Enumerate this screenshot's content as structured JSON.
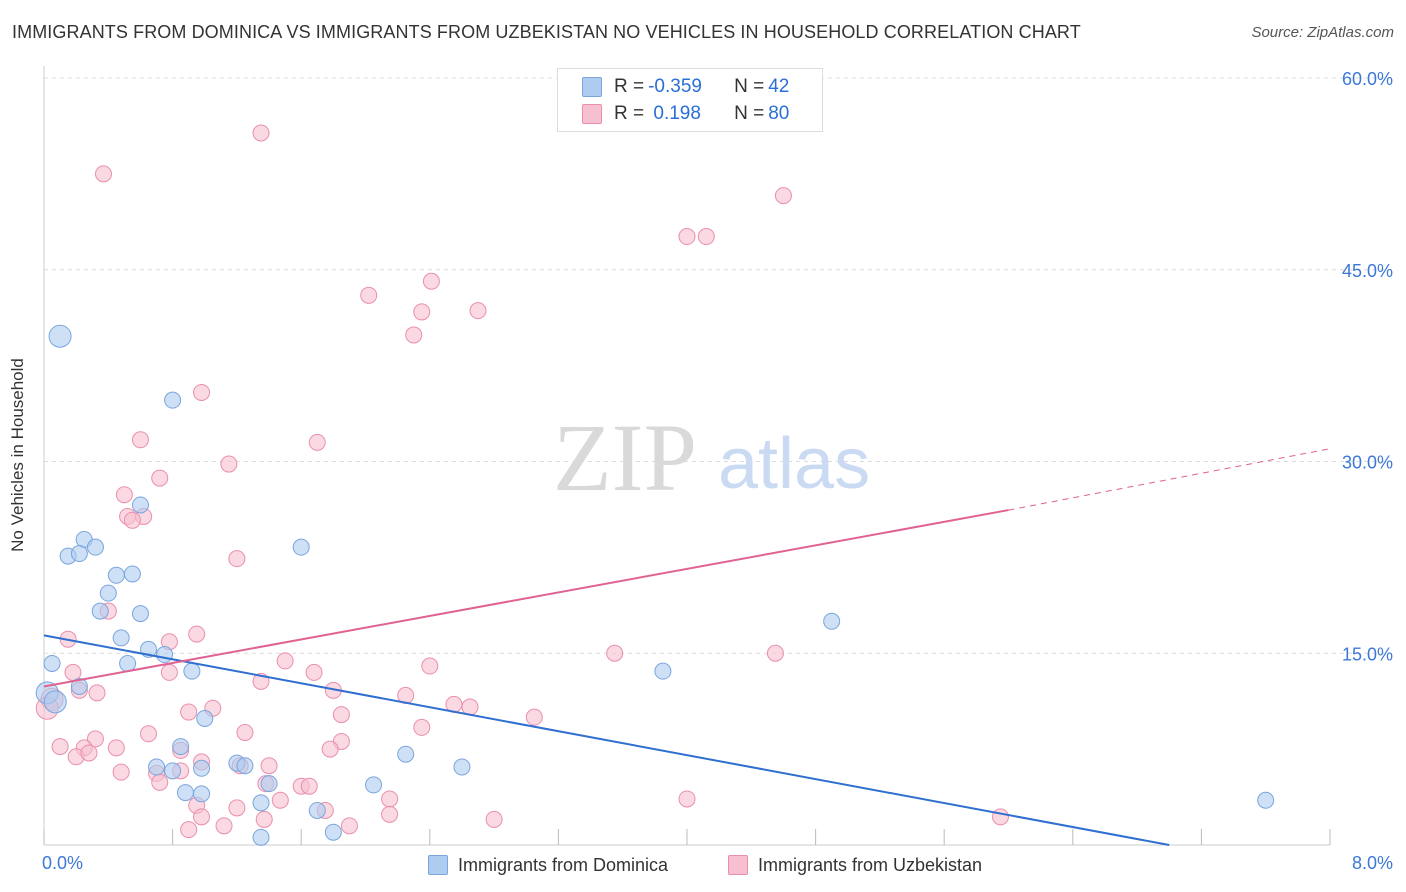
{
  "header": {
    "title": "IMMIGRANTS FROM DOMINICA VS IMMIGRANTS FROM UZBEKISTAN NO VEHICLES IN HOUSEHOLD CORRELATION CHART",
    "source": "Source: ZipAtlas.com"
  },
  "legend": {
    "rows": [
      {
        "r_label": "R = ",
        "r_value": "-0.359",
        "n_label": "N = ",
        "n_value": "42"
      },
      {
        "r_label": "R = ",
        "r_value": " 0.198",
        "n_label": "N = ",
        "n_value": "80"
      }
    ]
  },
  "bottom_legend": {
    "series_a": "Immigrants from Dominica",
    "series_b": "Immigrants from Uzbekistan"
  },
  "watermark": {
    "zip": "ZIP",
    "atlas": "atlas"
  },
  "colors": {
    "dominica_fill": "#aecbf0",
    "dominica_stroke": "#7aa5dd",
    "dominica_line": "#2f6fd0",
    "uzbekistan_fill": "#f7c0d0",
    "uzbekistan_stroke": "#ea8fab",
    "uzbekistan_line": "#e06292",
    "tick_label": "#3c78d8",
    "grid": "#dcdcdc"
  },
  "chart_data": {
    "type": "scatter",
    "title": "IMMIGRANTS FROM DOMINICA VS IMMIGRANTS FROM UZBEKISTAN NO VEHICLES IN HOUSEHOLD CORRELATION CHART",
    "xlabel": "",
    "ylabel": "No Vehicles in Household",
    "xlim": [
      0,
      8
    ],
    "ylim": [
      0,
      60
    ],
    "x_tick_labels": [
      "0.0%",
      "8.0%"
    ],
    "y_ticks": [
      15,
      30,
      45,
      60
    ],
    "y_tick_labels": [
      "15.0%",
      "30.0%",
      "45.0%",
      "60.0%"
    ],
    "grid": true,
    "legend_position": "top-center",
    "series": [
      {
        "name": "Immigrants from Dominica",
        "R": -0.359,
        "N": 42,
        "trend": {
          "x0": 0.0,
          "y0": 16.4,
          "x1": 7.0,
          "y1": 0.0
        },
        "points": [
          [
            0.1,
            39.8
          ],
          [
            0.8,
            34.8
          ],
          [
            0.6,
            26.6
          ],
          [
            0.25,
            23.9
          ],
          [
            0.32,
            23.3
          ],
          [
            0.15,
            22.6
          ],
          [
            0.22,
            22.8
          ],
          [
            1.6,
            23.3
          ],
          [
            0.45,
            21.1
          ],
          [
            0.55,
            21.2
          ],
          [
            0.4,
            19.7
          ],
          [
            0.35,
            18.3
          ],
          [
            0.6,
            18.1
          ],
          [
            0.48,
            16.2
          ],
          [
            0.65,
            15.3
          ],
          [
            0.75,
            14.9
          ],
          [
            0.05,
            14.2
          ],
          [
            0.52,
            14.2
          ],
          [
            0.92,
            13.6
          ],
          [
            3.85,
            13.6
          ],
          [
            4.9,
            17.5
          ],
          [
            0.22,
            12.4
          ],
          [
            0.02,
            11.9
          ],
          [
            1.0,
            9.9
          ],
          [
            0.85,
            7.7
          ],
          [
            1.2,
            6.4
          ],
          [
            1.25,
            6.2
          ],
          [
            0.7,
            6.1
          ],
          [
            0.8,
            5.8
          ],
          [
            0.98,
            6.0
          ],
          [
            2.25,
            7.1
          ],
          [
            2.6,
            6.1
          ],
          [
            0.88,
            4.1
          ],
          [
            0.98,
            4.0
          ],
          [
            1.4,
            4.8
          ],
          [
            2.05,
            4.7
          ],
          [
            1.35,
            3.3
          ],
          [
            1.7,
            2.7
          ],
          [
            1.8,
            1.0
          ],
          [
            1.35,
            0.6
          ],
          [
            7.6,
            3.5
          ],
          [
            0.07,
            11.2
          ]
        ]
      },
      {
        "name": "Immigrants from Uzbekistan",
        "R": 0.198,
        "N": 80,
        "trend": {
          "x0": 0.0,
          "y0": 12.4,
          "x1": 6.0,
          "y1": 26.2
        },
        "trend_dashed": {
          "x0": 6.0,
          "y0": 26.2,
          "x1": 8.0,
          "y1": 31.0
        },
        "points": [
          [
            1.35,
            55.7
          ],
          [
            0.37,
            52.5
          ],
          [
            4.6,
            50.8
          ],
          [
            4.0,
            47.6
          ],
          [
            4.12,
            47.6
          ],
          [
            2.41,
            44.1
          ],
          [
            2.02,
            43.0
          ],
          [
            2.35,
            41.7
          ],
          [
            2.7,
            41.8
          ],
          [
            2.3,
            39.9
          ],
          [
            0.98,
            35.4
          ],
          [
            0.6,
            31.7
          ],
          [
            1.7,
            31.5
          ],
          [
            1.15,
            29.8
          ],
          [
            0.72,
            28.7
          ],
          [
            0.5,
            27.4
          ],
          [
            0.52,
            25.7
          ],
          [
            0.62,
            25.7
          ],
          [
            0.55,
            25.4
          ],
          [
            1.2,
            22.4
          ],
          [
            0.4,
            18.3
          ],
          [
            0.15,
            16.1
          ],
          [
            0.78,
            15.9
          ],
          [
            0.95,
            16.5
          ],
          [
            3.55,
            15.0
          ],
          [
            4.55,
            15.0
          ],
          [
            1.5,
            14.4
          ],
          [
            2.4,
            14.0
          ],
          [
            1.68,
            13.5
          ],
          [
            0.78,
            13.5
          ],
          [
            0.18,
            13.5
          ],
          [
            0.22,
            12.1
          ],
          [
            0.33,
            11.9
          ],
          [
            1.35,
            12.8
          ],
          [
            1.8,
            12.1
          ],
          [
            2.25,
            11.7
          ],
          [
            2.55,
            11.0
          ],
          [
            2.65,
            10.8
          ],
          [
            0.9,
            10.4
          ],
          [
            1.05,
            10.7
          ],
          [
            1.85,
            10.2
          ],
          [
            3.05,
            10.0
          ],
          [
            0.05,
            11.4
          ],
          [
            0.02,
            10.7
          ],
          [
            2.35,
            9.2
          ],
          [
            1.25,
            8.8
          ],
          [
            0.65,
            8.7
          ],
          [
            0.32,
            8.3
          ],
          [
            1.85,
            8.1
          ],
          [
            0.1,
            7.7
          ],
          [
            0.25,
            7.6
          ],
          [
            0.45,
            7.6
          ],
          [
            0.85,
            7.4
          ],
          [
            1.78,
            7.5
          ],
          [
            0.2,
            6.9
          ],
          [
            0.28,
            7.2
          ],
          [
            0.98,
            6.5
          ],
          [
            1.22,
            6.2
          ],
          [
            1.4,
            6.2
          ],
          [
            0.48,
            5.7
          ],
          [
            0.7,
            5.6
          ],
          [
            0.85,
            5.8
          ],
          [
            1.38,
            4.8
          ],
          [
            1.6,
            4.6
          ],
          [
            1.65,
            4.6
          ],
          [
            0.72,
            4.9
          ],
          [
            0.95,
            3.1
          ],
          [
            1.2,
            2.9
          ],
          [
            1.47,
            3.5
          ],
          [
            1.75,
            2.7
          ],
          [
            2.15,
            3.6
          ],
          [
            2.15,
            2.4
          ],
          [
            0.98,
            2.2
          ],
          [
            1.37,
            2.0
          ],
          [
            1.12,
            1.5
          ],
          [
            1.9,
            1.5
          ],
          [
            2.8,
            2.0
          ],
          [
            4.0,
            3.6
          ],
          [
            5.95,
            2.2
          ],
          [
            0.9,
            1.2
          ]
        ]
      }
    ]
  }
}
